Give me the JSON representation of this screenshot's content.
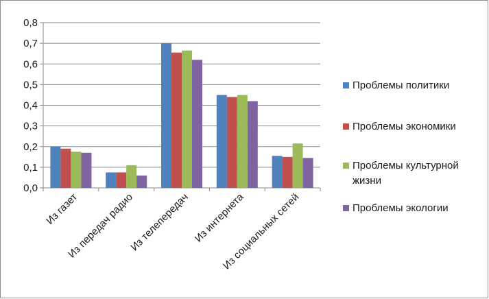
{
  "chart_data": {
    "type": "bar",
    "title": "",
    "xlabel": "",
    "ylabel": "",
    "ylim": [
      0,
      0.8
    ],
    "yticks": [
      "0,0",
      "0,1",
      "0,2",
      "0,3",
      "0,4",
      "0,5",
      "0,6",
      "0,7",
      "0,8"
    ],
    "grid": true,
    "legend_position": "right",
    "categories": [
      "Из газет",
      "Из передач радио",
      "Из телепередач",
      "Из интернета",
      "Из социальных сетей"
    ],
    "series": [
      {
        "name": "Проблемы политики",
        "color": "#4f81bd",
        "values": [
          0.2,
          0.075,
          0.7,
          0.45,
          0.155
        ]
      },
      {
        "name": "Проблемы экономики",
        "color": "#c0504d",
        "values": [
          0.19,
          0.075,
          0.655,
          0.44,
          0.15
        ]
      },
      {
        "name": "Проблемы культурной жизни",
        "color": "#9bbb59",
        "values": [
          0.175,
          0.11,
          0.665,
          0.45,
          0.215
        ]
      },
      {
        "name": "Проблемы экологии",
        "color": "#8064a2",
        "values": [
          0.17,
          0.06,
          0.62,
          0.42,
          0.145
        ]
      }
    ]
  }
}
